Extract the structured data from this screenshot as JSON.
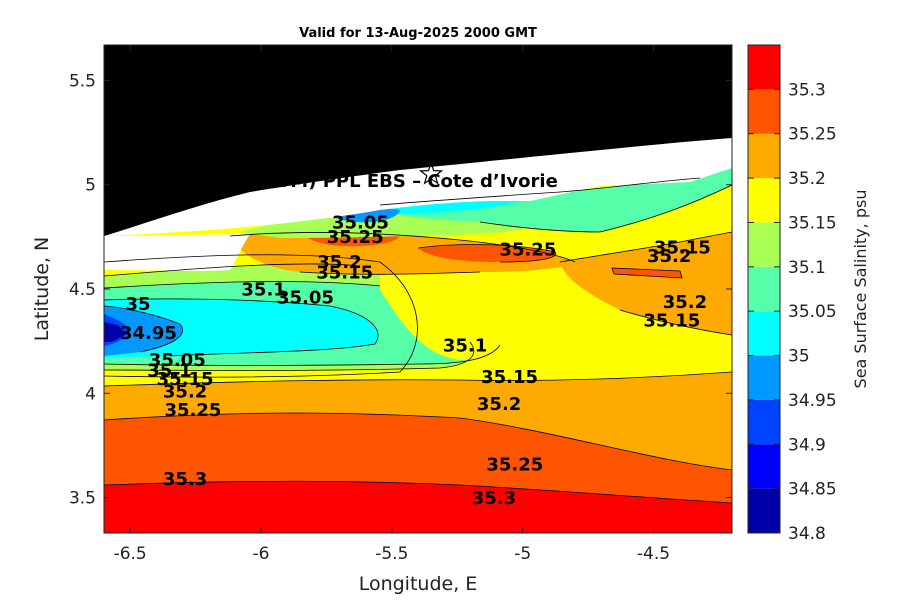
{
  "chart_data": {
    "type": "contour",
    "title": "Valid for 13-Aug-2025 2000 GMT",
    "xlabel": "Longitude, E",
    "ylabel": "Latitude, N",
    "xlim": [
      -6.6,
      -4.2
    ],
    "ylim": [
      3.33,
      5.67
    ],
    "x_ticks": [
      -6.5,
      -6,
      -5.5,
      -5,
      -4.5
    ],
    "x_tick_labels": [
      "-6.5",
      "-6",
      "-5.5",
      "-5",
      "-4.5"
    ],
    "y_ticks": [
      3.5,
      4,
      4.5,
      5,
      5.5
    ],
    "y_tick_labels": [
      "3.5",
      "4",
      "4.5",
      "5",
      "5.5"
    ],
    "colorbar": {
      "title": "Sea Surface Salinity, psu",
      "levels": [
        34.8,
        34.85,
        34.9,
        34.95,
        35,
        35.05,
        35.1,
        35.15,
        35.2,
        35.25,
        35.3,
        35.35
      ],
      "tick_labels": [
        "34.8",
        "34.85",
        "34.9",
        "34.95",
        "35",
        "35.05",
        "35.1",
        "35.15",
        "35.2",
        "35.25",
        "35.3"
      ],
      "colors": [
        "#0000a8",
        "#0000ff",
        "#0044ff",
        "#0099ff",
        "#00ffff",
        "#55ffaa",
        "#aaff55",
        "#ffff00",
        "#ffaa00",
        "#ff5500",
        "#ff0000"
      ]
    },
    "land_color": "#000000",
    "nodata_color": "#ffffff",
    "marker": {
      "type": "star",
      "lon": -5.35,
      "lat": 5.05
    },
    "annotation": {
      "text": "A (ONHYM) PPL EBS  – Cote d’Ivorie",
      "lon": -6.22,
      "lat": 4.99
    },
    "contour_labels": [
      {
        "text": "35.3",
        "lon": -6.29,
        "lat": 3.56
      },
      {
        "text": "35.3",
        "lon": -5.11,
        "lat": 3.47
      },
      {
        "text": "35.25",
        "lon": -6.26,
        "lat": 3.89
      },
      {
        "text": "35.25",
        "lon": -5.03,
        "lat": 3.63
      },
      {
        "text": "35.2",
        "lon": -6.29,
        "lat": 3.98
      },
      {
        "text": "35.2",
        "lon": -5.09,
        "lat": 3.92
      },
      {
        "text": "35.15",
        "lon": -6.29,
        "lat": 4.04
      },
      {
        "text": "35.15",
        "lon": -5.05,
        "lat": 4.05
      },
      {
        "text": "35.1",
        "lon": -6.35,
        "lat": 4.08
      },
      {
        "text": "35.1",
        "lon": -5.22,
        "lat": 4.2
      },
      {
        "text": "35.05",
        "lon": -6.32,
        "lat": 4.13
      },
      {
        "text": "35.05",
        "lon": -5.83,
        "lat": 4.43
      },
      {
        "text": "34.95",
        "lon": -6.43,
        "lat": 4.26
      },
      {
        "text": "35",
        "lon": -6.47,
        "lat": 4.4
      },
      {
        "text": "35.1",
        "lon": -5.99,
        "lat": 4.47
      },
      {
        "text": "35.15",
        "lon": -5.68,
        "lat": 4.55
      },
      {
        "text": "35.2",
        "lon": -5.7,
        "lat": 4.6
      },
      {
        "text": "35.25",
        "lon": -4.98,
        "lat": 4.66
      },
      {
        "text": "35.25",
        "lon": -5.64,
        "lat": 4.72
      },
      {
        "text": "35.05",
        "lon": -5.62,
        "lat": 4.79
      },
      {
        "text": "35.15",
        "lon": -4.39,
        "lat": 4.67
      },
      {
        "text": "35.2",
        "lon": -4.44,
        "lat": 4.63
      },
      {
        "text": "35.2",
        "lon": -4.38,
        "lat": 4.41
      },
      {
        "text": "35.15",
        "lon": -4.43,
        "lat": 4.32
      }
    ]
  }
}
